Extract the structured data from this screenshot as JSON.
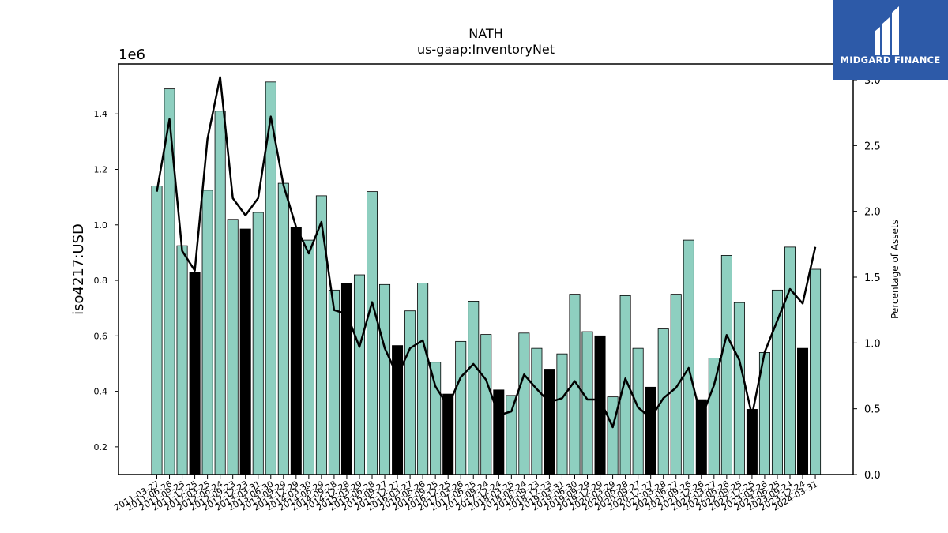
{
  "brand": {
    "name": "MIDGARD FINANCE",
    "bg": "#2d5aa8"
  },
  "chart_data": {
    "type": "bar",
    "title": "NATH",
    "subtitle": "us-gaap:InventoryNet",
    "ylabel": "iso4217:USD",
    "y_multiplier": "1e6",
    "ylabel_right": "Percentage of Assets",
    "ylim": [
      0.1,
      1.58
    ],
    "y_ticks": [
      0.2,
      0.4,
      0.6,
      0.8,
      1.0,
      1.2,
      1.4
    ],
    "ylim_right": [
      0.0,
      3.12
    ],
    "y_ticks_right": [
      0.0,
      0.5,
      1.0,
      1.5,
      2.0,
      2.5,
      3.0
    ],
    "grid": false,
    "bar_color": "#8ecfc0",
    "highlight_color": "#000000",
    "line_color": "#000000",
    "categories": [
      "2011-03-27",
      "2011-06-26",
      "2011-09-25",
      "2011-12-25",
      "2012-03-25",
      "2012-06-24",
      "2012-09-23",
      "2012-12-23",
      "2013-03-31",
      "2013-06-30",
      "2013-09-29",
      "2013-12-29",
      "2014-03-30",
      "2014-06-29",
      "2014-09-28",
      "2014-12-28",
      "2015-03-29",
      "2015-06-28",
      "2015-09-27",
      "2015-12-27",
      "2016-03-27",
      "2016-06-26",
      "2016-09-25",
      "2016-12-25",
      "2017-03-26",
      "2017-06-25",
      "2017-09-24",
      "2017-12-24",
      "2018-03-25",
      "2018-06-24",
      "2018-09-23",
      "2018-12-23",
      "2019-03-31",
      "2019-06-30",
      "2019-09-29",
      "2019-12-29",
      "2020-03-29",
      "2020-06-28",
      "2020-09-27",
      "2020-12-27",
      "2021-03-28",
      "2021-06-27",
      "2021-09-26",
      "2021-12-26",
      "2022-03-27",
      "2022-06-26",
      "2022-09-25",
      "2022-12-25",
      "2023-03-26",
      "2023-06-25",
      "2023-09-24",
      "2023-12-24",
      "2024-03-31"
    ],
    "series": [
      {
        "values": [
          1.14,
          1.49,
          0.925,
          0.83,
          1.125,
          1.41,
          1.02,
          0.985,
          1.045,
          1.515,
          1.15,
          0.99,
          0.945,
          1.105,
          0.765,
          0.79,
          0.82,
          1.12,
          0.785,
          0.565,
          0.69,
          0.79,
          0.505,
          0.39,
          0.58,
          0.725,
          0.605,
          0.405,
          0.385,
          0.61,
          0.555,
          0.48,
          0.535,
          0.75,
          0.615,
          0.6,
          0.38,
          0.745,
          0.555,
          0.415,
          0.625,
          0.75,
          0.945,
          0.37,
          0.52,
          0.89,
          0.72,
          0.335,
          0.54,
          0.765,
          0.92,
          0.555,
          0.84
        ]
      },
      {
        "name": "Percentage of Assets",
        "axis": "right",
        "values": [
          2.15,
          2.7,
          1.7,
          1.55,
          2.55,
          3.02,
          2.1,
          1.97,
          2.1,
          2.72,
          2.2,
          1.88,
          1.68,
          1.92,
          1.25,
          1.22,
          0.97,
          1.31,
          0.96,
          0.75,
          0.96,
          1.02,
          0.67,
          0.52,
          0.74,
          0.84,
          0.72,
          0.45,
          0.48,
          0.76,
          0.65,
          0.55,
          0.58,
          0.71,
          0.57,
          0.57,
          0.36,
          0.73,
          0.51,
          0.43,
          0.58,
          0.66,
          0.81,
          0.43,
          0.68,
          1.06,
          0.87,
          0.45,
          0.93,
          1.17,
          1.41,
          1.3,
          1.73
        ]
      }
    ],
    "highlight_indices": [
      3,
      7,
      11,
      15,
      19,
      23,
      27,
      31,
      35,
      39,
      43,
      47,
      51
    ]
  }
}
